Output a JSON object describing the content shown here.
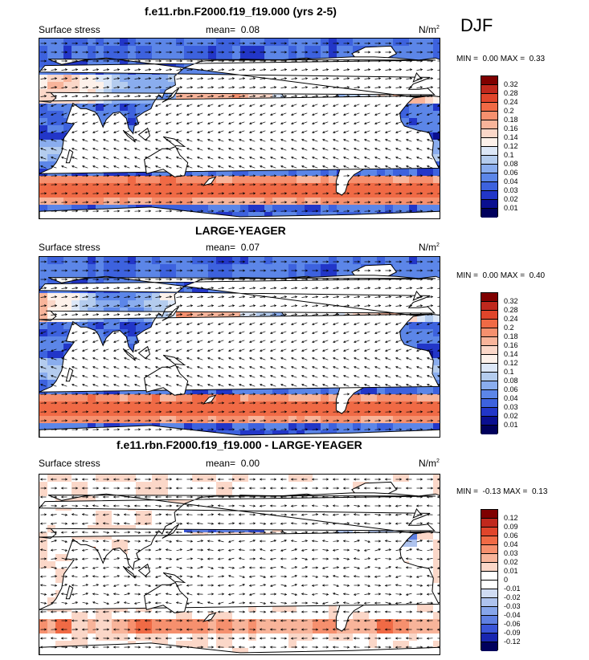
{
  "season": "DJF",
  "panels": [
    {
      "title": "f.e11.rbn.F2000.f19_f19.000 (yrs 2-5)",
      "variable": "Surface stress",
      "mean_label": "mean=",
      "mean_value": "0.08",
      "units": "N/m",
      "units_exp": "2",
      "min_label": "MIN =",
      "min_value": "0.00",
      "max_label": "MAX =",
      "max_value": "0.33",
      "colorbar_labels": [
        "0.32",
        "0.28",
        "0.24",
        "0.2",
        "0.18",
        "0.16",
        "0.14",
        "0.12",
        "0.1",
        "0.08",
        "0.06",
        "0.04",
        "0.03",
        "0.02",
        "0.01"
      ]
    },
    {
      "title": "LARGE-YEAGER",
      "variable": "Surface stress",
      "mean_label": "mean=",
      "mean_value": "0.07",
      "units": "N/m",
      "units_exp": "2",
      "min_label": "MIN =",
      "min_value": "0.00",
      "max_label": "MAX =",
      "max_value": "0.40",
      "colorbar_labels": [
        "0.32",
        "0.28",
        "0.24",
        "0.2",
        "0.18",
        "0.16",
        "0.14",
        "0.12",
        "0.1",
        "0.08",
        "0.06",
        "0.04",
        "0.03",
        "0.02",
        "0.01"
      ]
    },
    {
      "title": "f.e11.rbn.F2000.f19_f19.000 - LARGE-YEAGER",
      "variable": "Surface stress",
      "mean_label": "mean=",
      "mean_value": "0.00",
      "units": "N/m",
      "units_exp": "2",
      "min_label": "MIN =",
      "min_value": "-0.13",
      "max_label": "MAX =",
      "max_value": "0.13",
      "colorbar_labels": [
        "0.12",
        "0.09",
        "0.06",
        "0.04",
        "0.03",
        "0.02",
        "0.01",
        "0",
        "-0.01",
        "-0.02",
        "-0.03",
        "-0.04",
        "-0.06",
        "-0.09",
        "-0.12"
      ]
    }
  ],
  "colors": {
    "seq": [
      "#7f0000",
      "#c0281d",
      "#e0452b",
      "#f06a45",
      "#f6906e",
      "#f8b49a",
      "#fbd7c8",
      "#fdf1ea",
      "#dce7f7",
      "#b4ccee",
      "#8aadee",
      "#5c86e8",
      "#3d62de",
      "#2236c8",
      "#0a0f90",
      "#00005c"
    ],
    "diff": [
      "#7f0000",
      "#c0281d",
      "#e0452b",
      "#f06a45",
      "#f6906e",
      "#f8b49a",
      "#fbd7c8",
      "#ffffff",
      "#ffffff",
      "#d0dcf3",
      "#aec3ee",
      "#86a5ea",
      "#5f80e2",
      "#3a55d8",
      "#1826b0",
      "#00005c"
    ],
    "land": "#ffffff",
    "coast": "#000000"
  }
}
